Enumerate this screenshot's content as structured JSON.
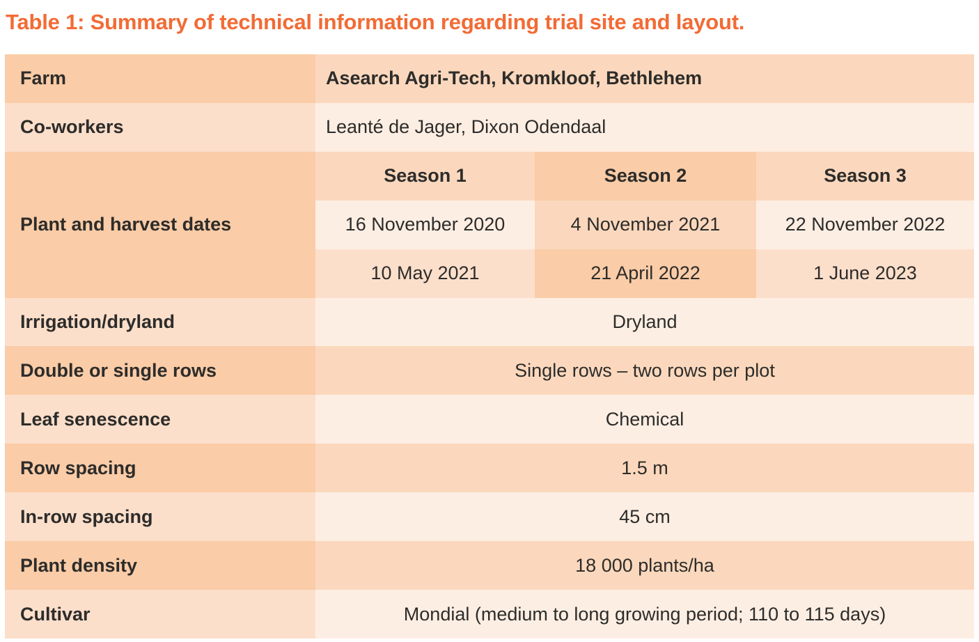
{
  "title": "Table 1: Summary of technical information regarding trial site and layout.",
  "colors": {
    "title_orange": "#F26B35",
    "text_dark": "#2D2C2A",
    "cell_dark": "#FACCA7",
    "cell_medium": "#FBD8BD",
    "cell_light": "#FCDFCB",
    "cell_lightest": "#FDEEE3",
    "background": "#FFFFFF"
  },
  "table": {
    "farm": {
      "label": "Farm",
      "value": "Asearch Agri-Tech, Kromkloof, Bethlehem"
    },
    "coworkers": {
      "label": "Co-workers",
      "value": "Leanté de Jager, Dixon Odendaal"
    },
    "plant_harvest": {
      "label": "Plant and harvest dates",
      "season_headers": [
        "Season 1",
        "Season 2",
        "Season 3"
      ],
      "plant_dates": [
        "16 November 2020",
        "4 November 2021",
        "22 November 2022"
      ],
      "harvest_dates": [
        "10 May 2021",
        "21 April 2022",
        "1 June 2023"
      ]
    },
    "irrigation": {
      "label": "Irrigation/dryland",
      "value": "Dryland"
    },
    "row_type": {
      "label": "Double or single rows",
      "value": "Single rows – two rows per plot"
    },
    "leaf_senescence": {
      "label": "Leaf senescence",
      "value": "Chemical"
    },
    "row_spacing": {
      "label": "Row spacing",
      "value": "1.5 m"
    },
    "in_row_spacing": {
      "label": "In-row spacing",
      "value": "45 cm"
    },
    "plant_density": {
      "label": "Plant density",
      "value": "18 000 plants/ha"
    },
    "cultivar": {
      "label": "Cultivar",
      "value": "Mondial (medium to long growing period; 110 to 115 days)"
    }
  }
}
